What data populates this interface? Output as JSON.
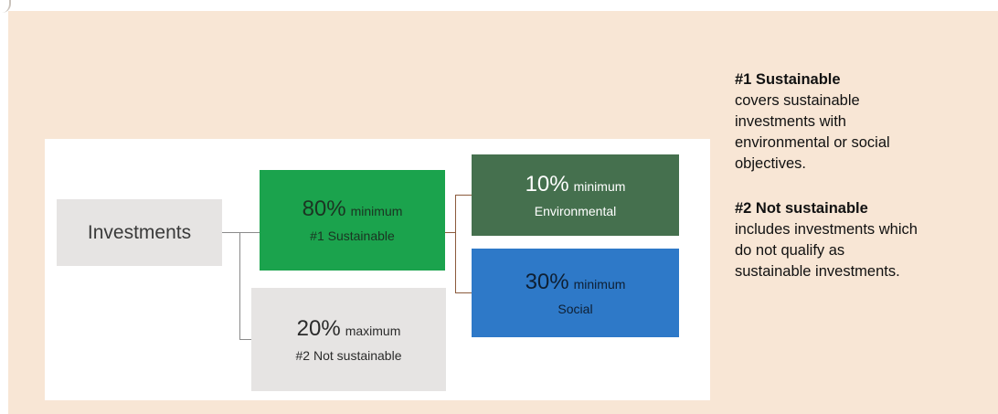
{
  "diagram": {
    "root": {
      "label": "Investments"
    },
    "sustainable": {
      "percent": "80%",
      "qualifier": "minimum",
      "label": "#1 Sustainable"
    },
    "environmental": {
      "percent": "10%",
      "qualifier": "minimum",
      "label": "Environmental"
    },
    "social": {
      "percent": "30%",
      "qualifier": "minimum",
      "label": "Social"
    },
    "not_sustainable": {
      "percent": "20%",
      "qualifier": "maximum",
      "label": "#2 Not sustainable"
    }
  },
  "legend": {
    "items": [
      {
        "term": "#1 Sustainable",
        "description": "covers sustainable investments with environmental or social objectives."
      },
      {
        "term": "#2 Not sustainable",
        "description": "includes investments which do not qualify as sustainable investments."
      }
    ]
  },
  "colors": {
    "panel_background": "#f8e6d5",
    "sustainable": "#1ba34d",
    "environmental": "#45704e",
    "social": "#2e79c8",
    "neutral_box": "#e6e4e3"
  }
}
